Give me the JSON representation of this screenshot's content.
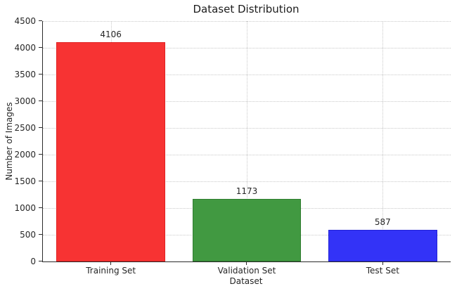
{
  "chart_data": {
    "type": "bar",
    "title": "Dataset Distribution",
    "xlabel": "Dataset",
    "ylabel": "Number of Images",
    "categories": [
      "Training Set",
      "Validation Set",
      "Test Set"
    ],
    "values": [
      4106,
      1173,
      587
    ],
    "value_labels": [
      "4106",
      "1173",
      "587"
    ],
    "bar_colors": [
      "#f73333",
      "#419941",
      "#3333f7"
    ],
    "bar_edge_colors": [
      "#e02222",
      "#2f7d2f",
      "#2222d8"
    ],
    "ylim": [
      0,
      4500
    ],
    "yticks": [
      0,
      500,
      1000,
      1500,
      2000,
      2500,
      3000,
      3500,
      4000,
      4500
    ],
    "grid": "both-dotted",
    "grid_color": "#c9c9c9",
    "legend": "none",
    "spine_color": "#2b2b2b",
    "text_color": "#262626",
    "background_color": "#ffffff"
  }
}
